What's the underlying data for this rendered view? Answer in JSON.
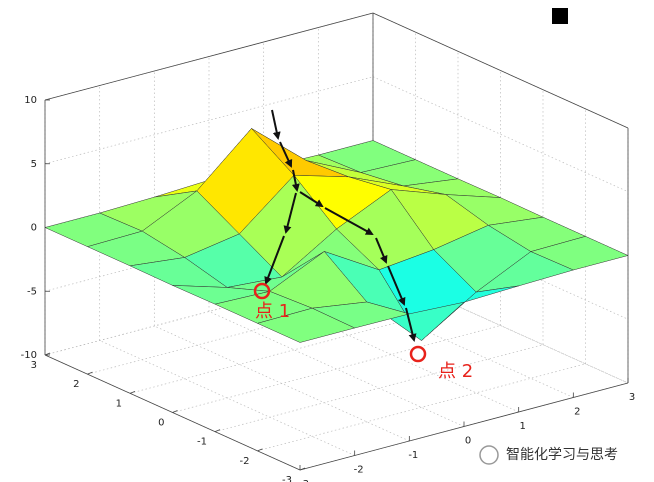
{
  "chart_data": {
    "type": "surface3d",
    "x": [
      -3,
      -2,
      -1,
      0,
      1,
      2,
      3
    ],
    "y": [
      -3,
      -2,
      -1,
      0,
      1,
      2,
      3
    ],
    "z": [
      [
        0,
        0,
        -0.03,
        -0.25,
        -0.11,
        0,
        0
      ],
      [
        0,
        0.05,
        -0.6,
        -4.76,
        -2.1,
        -0.06,
        0
      ],
      [
        0,
        -0.13,
        1.86,
        -0.72,
        -0.27,
        0.5,
        0
      ],
      [
        -0.03,
        -1.33,
        -1.65,
        0.98,
        2.94,
        1.41,
        0.03
      ],
      [
        0,
        -0.48,
        0.23,
        3.69,
        2.43,
        0.58,
        0
      ],
      [
        0,
        0.08,
        2.1,
        5.86,
        2.21,
        0.13,
        0
      ],
      [
        0,
        0,
        0.11,
        0.3,
        0.11,
        0,
        0
      ]
    ],
    "xlim": [
      -3,
      3
    ],
    "ylim": [
      -3,
      3
    ],
    "zlim": [
      -10,
      10
    ],
    "xticks": [
      -3,
      -2,
      -1,
      0,
      1,
      2,
      3
    ],
    "yticks": [
      -3,
      -2,
      -1,
      0,
      1,
      2,
      3
    ],
    "zticks": [
      -10,
      -5,
      0,
      5,
      10
    ],
    "colormap": "jet",
    "grid": true,
    "annotations": [
      "点 1",
      "点 2"
    ],
    "watermark": "智能化学习与思考"
  }
}
